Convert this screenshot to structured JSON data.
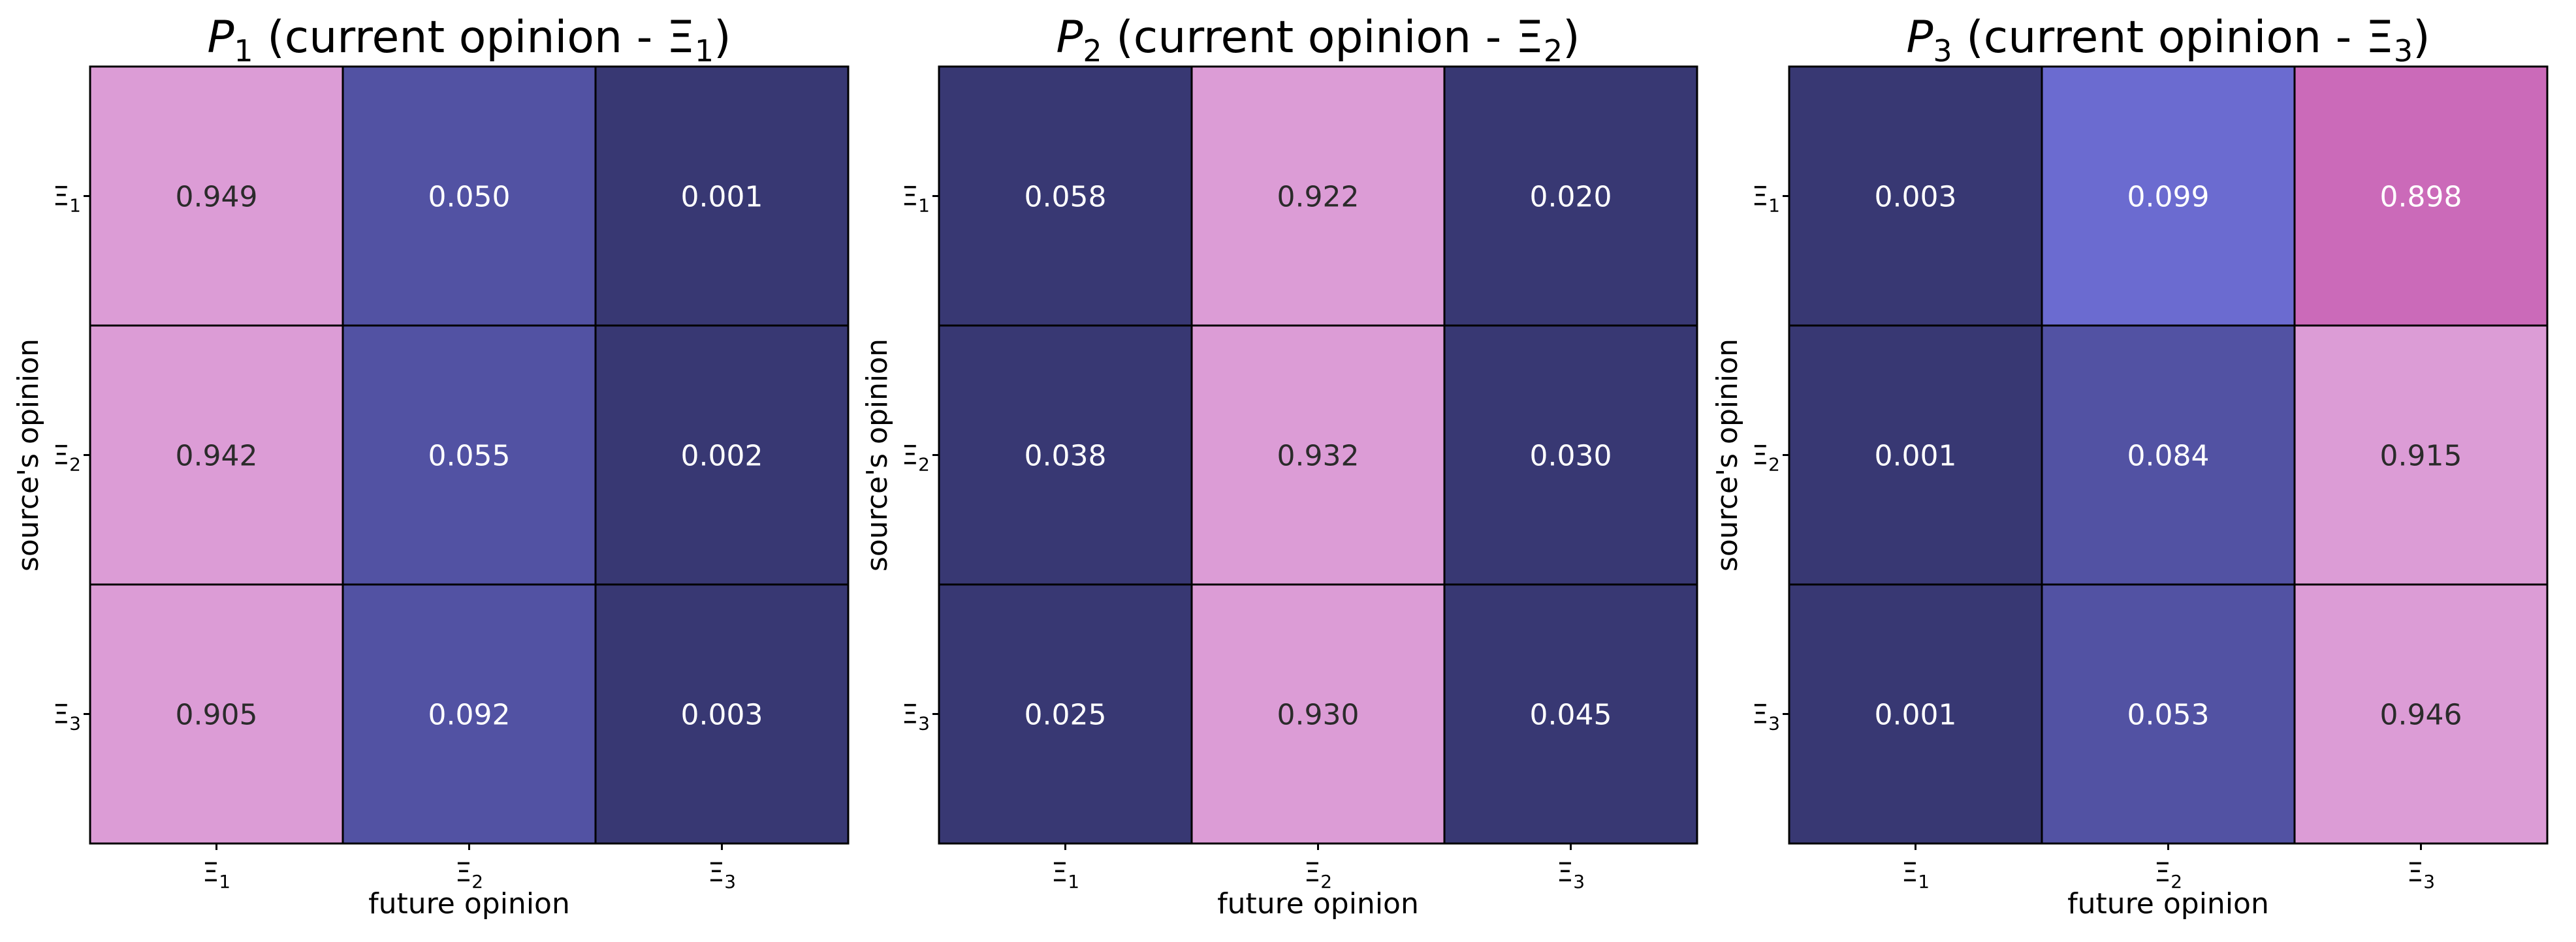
{
  "chart_data": [
    {
      "type": "heatmap",
      "title_var": "P",
      "title_sub": "1",
      "title_rest": " (current opinion - Ξ",
      "title_rest_sub": "1",
      "title_end": ")",
      "xlabel": "future opinion",
      "ylabel": "source's opinion",
      "x_ticks": [
        {
          "base": "Ξ",
          "sub": "1"
        },
        {
          "base": "Ξ",
          "sub": "2"
        },
        {
          "base": "Ξ",
          "sub": "3"
        }
      ],
      "y_ticks": [
        {
          "base": "Ξ",
          "sub": "1"
        },
        {
          "base": "Ξ",
          "sub": "2"
        },
        {
          "base": "Ξ",
          "sub": "3"
        }
      ],
      "values": [
        [
          0.949,
          0.05,
          0.001
        ],
        [
          0.942,
          0.055,
          0.002
        ],
        [
          0.905,
          0.092,
          0.003
        ]
      ],
      "labels": [
        [
          "0.949",
          "0.050",
          "0.001"
        ],
        [
          "0.942",
          "0.055",
          "0.002"
        ],
        [
          "0.905",
          "0.092",
          "0.003"
        ]
      ],
      "colors": [
        [
          "#dc9cd6",
          "#5252a3",
          "#383873"
        ],
        [
          "#dc9cd6",
          "#5252a3",
          "#383873"
        ],
        [
          "#dc9cd6",
          "#5252a3",
          "#383873"
        ]
      ],
      "text_colors": [
        [
          "#2b2b2b",
          "#ffffff",
          "#ffffff"
        ],
        [
          "#2b2b2b",
          "#ffffff",
          "#ffffff"
        ],
        [
          "#2b2b2b",
          "#ffffff",
          "#ffffff"
        ]
      ]
    },
    {
      "type": "heatmap",
      "title_var": "P",
      "title_sub": "2",
      "title_rest": " (current opinion - Ξ",
      "title_rest_sub": "2",
      "title_end": ")",
      "xlabel": "future opinion",
      "ylabel": "source's opinion",
      "x_ticks": [
        {
          "base": "Ξ",
          "sub": "1"
        },
        {
          "base": "Ξ",
          "sub": "2"
        },
        {
          "base": "Ξ",
          "sub": "3"
        }
      ],
      "y_ticks": [
        {
          "base": "Ξ",
          "sub": "1"
        },
        {
          "base": "Ξ",
          "sub": "2"
        },
        {
          "base": "Ξ",
          "sub": "3"
        }
      ],
      "values": [
        [
          0.058,
          0.922,
          0.02
        ],
        [
          0.038,
          0.932,
          0.03
        ],
        [
          0.025,
          0.93,
          0.045
        ]
      ],
      "labels": [
        [
          "0.058",
          "0.922",
          "0.020"
        ],
        [
          "0.038",
          "0.932",
          "0.030"
        ],
        [
          "0.025",
          "0.930",
          "0.045"
        ]
      ],
      "colors": [
        [
          "#383873",
          "#dc9cd6",
          "#383873"
        ],
        [
          "#383873",
          "#dc9cd6",
          "#383873"
        ],
        [
          "#383873",
          "#dc9cd6",
          "#383873"
        ]
      ],
      "text_colors": [
        [
          "#ffffff",
          "#2b2b2b",
          "#ffffff"
        ],
        [
          "#ffffff",
          "#2b2b2b",
          "#ffffff"
        ],
        [
          "#ffffff",
          "#2b2b2b",
          "#ffffff"
        ]
      ]
    },
    {
      "type": "heatmap",
      "title_var": "P",
      "title_sub": "3",
      "title_rest": " (current opinion - Ξ",
      "title_rest_sub": "3",
      "title_end": ")",
      "xlabel": "future opinion",
      "ylabel": "source's opinion",
      "x_ticks": [
        {
          "base": "Ξ",
          "sub": "1"
        },
        {
          "base": "Ξ",
          "sub": "2"
        },
        {
          "base": "Ξ",
          "sub": "3"
        }
      ],
      "y_ticks": [
        {
          "base": "Ξ",
          "sub": "1"
        },
        {
          "base": "Ξ",
          "sub": "2"
        },
        {
          "base": "Ξ",
          "sub": "3"
        }
      ],
      "values": [
        [
          0.003,
          0.099,
          0.898
        ],
        [
          0.001,
          0.084,
          0.915
        ],
        [
          0.001,
          0.053,
          0.946
        ]
      ],
      "labels": [
        [
          "0.003",
          "0.099",
          "0.898"
        ],
        [
          "0.001",
          "0.084",
          "0.915"
        ],
        [
          "0.001",
          "0.053",
          "0.946"
        ]
      ],
      "colors": [
        [
          "#383873",
          "#6b6bd0",
          "#cb6ab9"
        ],
        [
          "#383873",
          "#5252a3",
          "#dc9cd6"
        ],
        [
          "#383873",
          "#5252a3",
          "#dc9cd6"
        ]
      ],
      "text_colors": [
        [
          "#ffffff",
          "#ffffff",
          "#ffffff"
        ],
        [
          "#ffffff",
          "#ffffff",
          "#2b2b2b"
        ],
        [
          "#ffffff",
          "#ffffff",
          "#2b2b2b"
        ]
      ]
    }
  ]
}
